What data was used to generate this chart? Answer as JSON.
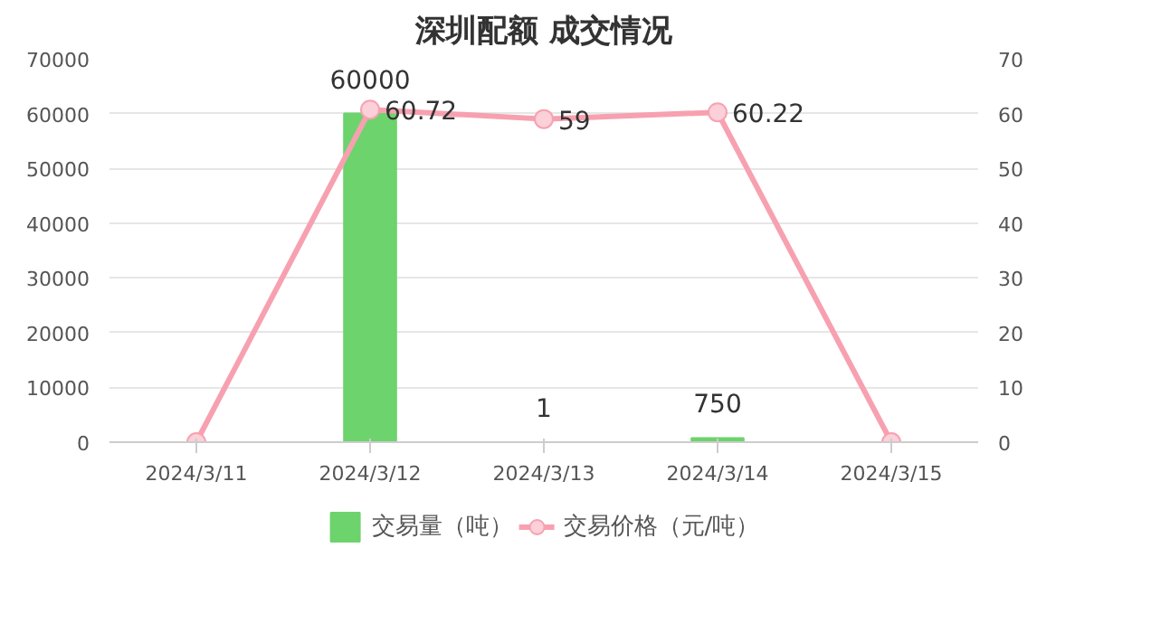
{
  "chart_data": {
    "type": "bar",
    "title": "深圳配额 成交情况",
    "categories": [
      "2024/3/11",
      "2024/3/12",
      "2024/3/13",
      "2024/3/14",
      "2024/3/15"
    ],
    "series": [
      {
        "name": "交易量（吨）",
        "color": "#6dd36d",
        "values": [
          null,
          60000,
          1,
          750,
          null
        ],
        "value_labels": [
          null,
          "60000",
          "1",
          "750",
          null
        ]
      },
      {
        "name": "交易价格（元/吨）",
        "type": "line",
        "axis": "y2",
        "color": "#f7a1b0",
        "marker": "circle",
        "values": [
          0,
          60.72,
          59,
          60.22,
          0
        ],
        "value_labels": [
          null,
          "60.72",
          "59",
          "60.22",
          null
        ]
      }
    ],
    "ylim": [
      0,
      70000
    ],
    "yticks": [
      0,
      10000,
      20000,
      30000,
      40000,
      50000,
      60000,
      70000
    ],
    "y2lim": [
      0,
      70
    ],
    "y2ticks": [
      0,
      10,
      20,
      30,
      40,
      50,
      60,
      70
    ],
    "grid": "y",
    "legend": "bottom"
  }
}
